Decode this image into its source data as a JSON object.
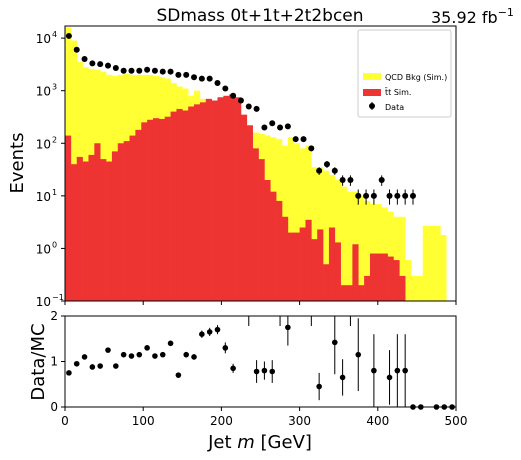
{
  "chart_data": [
    {
      "panel": "main",
      "type": "bar",
      "title": "SDmass  0t+1t+2t2bcen",
      "luminosity": "35.92 fb",
      "luminosity_sup": "−1",
      "xlabel": "Jet m [GeV]",
      "ylabel": "Events",
      "yscale": "log",
      "xlim": [
        0,
        500
      ],
      "ylim": [
        0.1,
        17000
      ],
      "x_ticks": [
        0,
        100,
        200,
        300,
        400,
        500
      ],
      "x_tick_labels": [
        "0",
        "100",
        "200",
        "300",
        "400",
        "500"
      ],
      "y_ticks": [
        0.1,
        1,
        10,
        100,
        1000,
        10000
      ],
      "y_tick_labels": [
        "10",
        "10",
        "10",
        "10",
        "10",
        "10"
      ],
      "y_tick_exponents": [
        "−1",
        "0",
        "1",
        "2",
        "3",
        "4"
      ],
      "bin_width": 7.5,
      "bin_edges_start": 0,
      "legend": {
        "placement": "top-right",
        "entries": [
          {
            "label": "QCD Bkg (Sim.)",
            "color": "#ffff33",
            "marker": "patch"
          },
          {
            "label": "t̄t Sim.",
            "color": "#ee3333",
            "marker": "patch"
          },
          {
            "label": "Data",
            "color": "#000000",
            "marker": "point"
          }
        ]
      },
      "series": [
        {
          "name": "QCD Bkg (Sim.)",
          "kind": "stacked-hist",
          "color": "#ffff33",
          "values": [
            16000,
            9000,
            3500,
            2800,
            2600,
            2500,
            2300,
            2000,
            1900,
            2000,
            2100,
            2000,
            2000,
            2000,
            2000,
            1900,
            1800,
            1700,
            1400,
            1200,
            1100,
            800,
            1000,
            700,
            600,
            500,
            400,
            300,
            260,
            240,
            220,
            200,
            160,
            150,
            140,
            130,
            120,
            90,
            130,
            100,
            80,
            90,
            35,
            35,
            30,
            25,
            20,
            15,
            12,
            12,
            10,
            8,
            7,
            7,
            6,
            5,
            4,
            4,
            0.6,
            0.3,
            0.3,
            2.7,
            2.7,
            2.7,
            1.8,
            0
          ]
        },
        {
          "name": "t̄t Sim.",
          "kind": "stacked-hist",
          "color": "#ee3333",
          "values": [
            140,
            40,
            55,
            45,
            60,
            100,
            50,
            45,
            70,
            100,
            110,
            140,
            180,
            250,
            280,
            300,
            290,
            320,
            400,
            450,
            420,
            500,
            550,
            600,
            700,
            650,
            750,
            800,
            850,
            750,
            350,
            220,
            80,
            50,
            20,
            12,
            8,
            4,
            2,
            2,
            2.5,
            3.5,
            1.5,
            2.3,
            0.5,
            2.5,
            1.3,
            0.2,
            0.2,
            1.2,
            0.2,
            0.3,
            0.8,
            0.8,
            0.8,
            0.7,
            0.6,
            0.3,
            0.1,
            0.1,
            0.1,
            0.1,
            0.1,
            0.1,
            0.1,
            0.1
          ]
        },
        {
          "name": "Data",
          "kind": "points",
          "color": "#000000",
          "x": [
            5,
            15,
            25,
            35,
            45,
            55,
            65,
            75,
            85,
            95,
            105,
            115,
            125,
            135,
            145,
            155,
            165,
            175,
            185,
            195,
            205,
            215,
            225,
            235,
            245,
            255,
            265,
            275,
            285,
            295,
            305,
            315,
            325,
            335,
            345,
            355,
            365,
            375,
            385,
            395,
            405,
            415,
            425,
            435,
            445
          ],
          "y": [
            11000,
            6000,
            4000,
            3300,
            3200,
            3000,
            2700,
            2400,
            2400,
            2400,
            2500,
            2400,
            2300,
            2300,
            2000,
            2000,
            1800,
            1700,
            1700,
            1400,
            1100,
            800,
            650,
            500,
            450,
            200,
            240,
            200,
            210,
            120,
            120,
            80,
            30,
            40,
            30,
            20,
            20,
            10,
            10,
            10,
            20,
            10,
            10,
            10,
            10
          ],
          "y_err": [
            100,
            75,
            60,
            55,
            55,
            55,
            50,
            50,
            50,
            50,
            50,
            50,
            50,
            48,
            45,
            45,
            42,
            41,
            41,
            37,
            33,
            28,
            25,
            22,
            21,
            14,
            16,
            14,
            14,
            11,
            11,
            9,
            5,
            6,
            5,
            4.5,
            4.5,
            3.2,
            3.2,
            3.2,
            4.5,
            3.2,
            3.2,
            3.2,
            3.2
          ]
        }
      ]
    },
    {
      "panel": "ratio",
      "type": "scatter",
      "xlabel": "Jet m [GeV]",
      "ylabel": "Data/MC",
      "xlim": [
        0,
        500
      ],
      "ylim": [
        0,
        2
      ],
      "x_ticks": [
        0,
        100,
        200,
        300,
        400,
        500
      ],
      "x_tick_labels": [
        "0",
        "100",
        "200",
        "300",
        "400",
        "500"
      ],
      "y_ticks": [
        0,
        1,
        2
      ],
      "y_tick_labels": [
        "0",
        "1",
        "2"
      ],
      "series": [
        {
          "name": "Data/MC",
          "color": "#000000",
          "x": [
            5,
            15,
            25,
            35,
            45,
            55,
            65,
            75,
            85,
            95,
            105,
            115,
            125,
            135,
            145,
            155,
            165,
            175,
            185,
            195,
            205,
            215,
            245,
            255,
            265,
            285,
            325,
            345,
            355,
            375,
            395,
            415,
            425,
            435,
            445,
            455,
            475,
            485,
            495
          ],
          "y": [
            0.75,
            0.95,
            1.1,
            0.88,
            0.9,
            1.25,
            0.9,
            1.15,
            1.12,
            1.15,
            1.3,
            1.12,
            1.15,
            1.4,
            0.7,
            1.15,
            1.1,
            1.6,
            1.65,
            1.7,
            1.3,
            0.85,
            0.78,
            0.8,
            0.78,
            1.75,
            0.45,
            1.42,
            0.65,
            1.15,
            0.8,
            0.65,
            0.8,
            0.8,
            0,
            0,
            0,
            0,
            0
          ],
          "y_err": [
            0.02,
            0.02,
            0.03,
            0.03,
            0.03,
            0.04,
            0.04,
            0.04,
            0.04,
            0.04,
            0.05,
            0.05,
            0.05,
            0.06,
            0.05,
            0.06,
            0.06,
            0.08,
            0.09,
            0.1,
            0.12,
            0.1,
            0.25,
            0.2,
            0.25,
            0.4,
            0.3,
            0.7,
            0.4,
            0.8,
            0.8,
            0.6,
            0.8,
            0.8,
            0,
            0,
            0,
            0,
            0
          ]
        }
      ],
      "overflow_arrows_x": [
        235,
        275,
        315,
        365
      ]
    }
  ]
}
